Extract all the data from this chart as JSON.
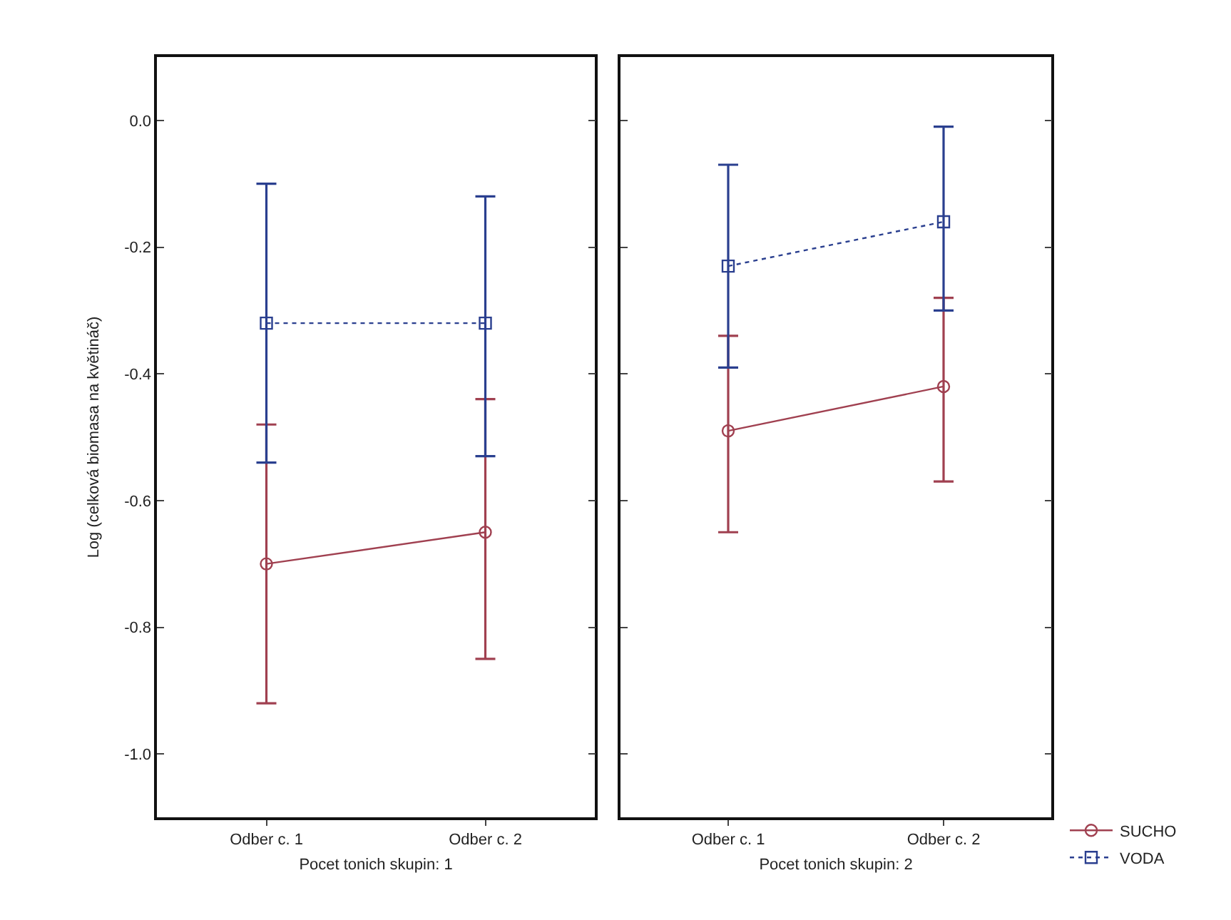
{
  "chart_data": [
    {
      "type": "line",
      "categories": [
        "Odber c. 1",
        "Odber c. 2"
      ],
      "xlabel": "Pocet tonich skupin: 1",
      "ylabel": "Log (celková biomasa na květináč)",
      "series": [
        {
          "color": "#a04050",
          "marker": "circle",
          "line_style": "solid",
          "values": [
            -0.7,
            -0.65
          ],
          "errors": [
            [
              -0.92,
              -0.48
            ],
            [
              -0.85,
              -0.44
            ]
          ]
        },
        {
          "color": "#2a3f8f",
          "marker": "square",
          "line_style": "dotted",
          "values": [
            -0.32,
            -0.32
          ],
          "errors": [
            [
              -0.54,
              -0.1
            ],
            [
              -0.53,
              -0.12
            ]
          ]
        }
      ],
      "ylim": [
        -1.1,
        0.1
      ],
      "yticks": [
        {
          "value": -1.0,
          "label": "-1.0"
        },
        {
          "value": -0.8,
          "label": "-0.8"
        },
        {
          "value": -0.6,
          "label": "-0.6"
        },
        {
          "value": -0.4,
          "label": "-0.4"
        },
        {
          "value": -0.2,
          "label": "-0.2"
        },
        {
          "value": 0.0,
          "label": "0.0"
        }
      ]
    },
    {
      "type": "line",
      "categories": [
        "Odber c. 1",
        "Odber c. 2"
      ],
      "xlabel": "Pocet tonich skupin: 2",
      "series": [
        {
          "name": "SUCHO",
          "color": "#a04050",
          "marker": "circle",
          "line_style": "solid",
          "values": [
            -0.49,
            -0.42
          ],
          "errors": [
            [
              -0.65,
              -0.34
            ],
            [
              -0.57,
              -0.28
            ]
          ]
        },
        {
          "name": "VODA",
          "color": "#2a3f8f",
          "marker": "square",
          "line_style": "dotted",
          "values": [
            -0.23,
            -0.16
          ],
          "errors": [
            [
              -0.39,
              -0.07
            ],
            [
              -0.3,
              -0.01
            ]
          ]
        }
      ],
      "ylim": [
        -1.1,
        0.1
      ],
      "yticks": [
        {
          "value": -1.0,
          "label": null
        },
        {
          "value": -0.8,
          "label": null
        },
        {
          "value": -0.6,
          "label": null
        },
        {
          "value": -0.4,
          "label": null
        },
        {
          "value": -0.2,
          "label": null
        },
        {
          "value": 0.0,
          "label": null
        }
      ],
      "legend": "bottom right",
      "tick_labels": "x"
    }
  ]
}
